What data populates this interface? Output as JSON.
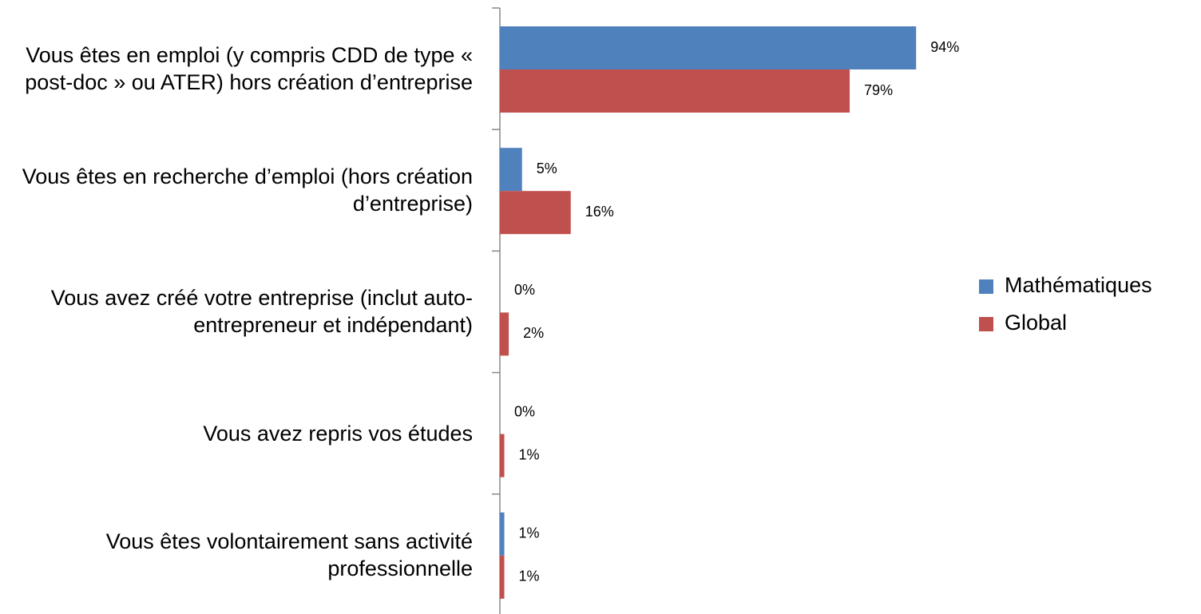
{
  "chart_data": {
    "type": "bar",
    "orientation": "horizontal",
    "categories": [
      "Vous êtes en emploi (y compris CDD de type « post-doc » ou ATER) hors création d’entreprise",
      "Vous êtes en recherche d’emploi (hors création d’entreprise)",
      "Vous avez créé votre entreprise (inclut auto-entrepreneur et indépendant)",
      "Vous avez repris vos études",
      "Vous êtes volontairement sans activité professionnelle"
    ],
    "series": [
      {
        "name": "Mathématiques",
        "color": "#4f81bd",
        "values": [
          94,
          5,
          0,
          0,
          1
        ],
        "value_labels": [
          "94%",
          "5%",
          "0%",
          "0%",
          "1%"
        ]
      },
      {
        "name": "Global",
        "color": "#c0504d",
        "values": [
          79,
          16,
          2,
          1,
          1
        ],
        "value_labels": [
          "79%",
          "16%",
          "2%",
          "1%",
          "1%"
        ]
      }
    ],
    "legend": "right"
  }
}
